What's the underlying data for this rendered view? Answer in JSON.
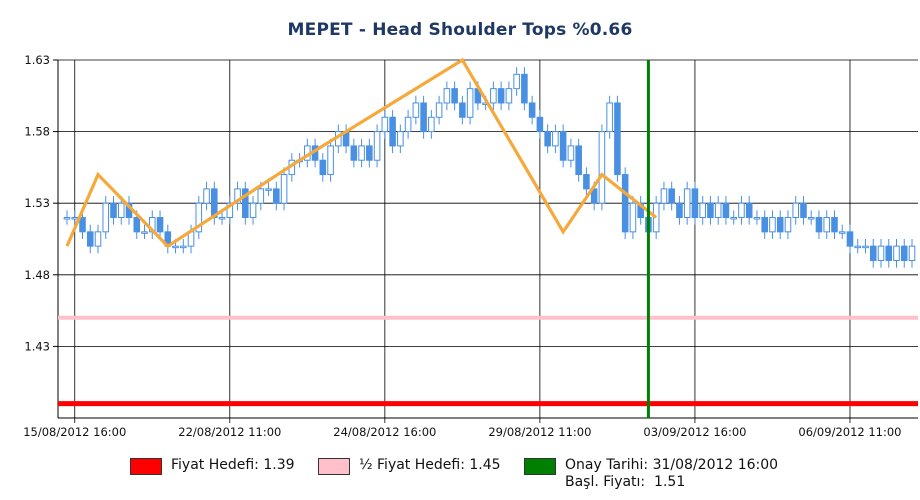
{
  "title": "MEPET - Head Shoulder Tops %0.66",
  "colors": {
    "candle": "#4a90e2",
    "pattern": "#f5a93b",
    "target": "#ff0000",
    "half_target": "#ffc0cb",
    "confirm": "#008000",
    "grid": "#000000"
  },
  "chart_data": {
    "type": "candlestick",
    "title": "MEPET - Head Shoulder Tops %0.66",
    "ylim": [
      1.38,
      1.63
    ],
    "yticks": [
      "1.63",
      "1.58",
      "1.53",
      "1.48",
      "1.43"
    ],
    "xticks": [
      "15/08/2012 16:00",
      "22/08/2012 11:00",
      "24/08/2012 16:00",
      "29/08/2012 11:00",
      "03/09/2012 16:00",
      "06/09/2012 11:00"
    ],
    "bar_count": 110,
    "xtick_indices": [
      1,
      21,
      41,
      61,
      81,
      101
    ],
    "price_closes": [
      1.52,
      1.52,
      1.51,
      1.5,
      1.51,
      1.53,
      1.52,
      1.53,
      1.52,
      1.51,
      1.51,
      1.52,
      1.51,
      1.5,
      1.5,
      1.5,
      1.51,
      1.53,
      1.54,
      1.52,
      1.52,
      1.53,
      1.54,
      1.52,
      1.53,
      1.54,
      1.54,
      1.53,
      1.55,
      1.56,
      1.56,
      1.57,
      1.56,
      1.55,
      1.57,
      1.58,
      1.57,
      1.56,
      1.57,
      1.56,
      1.58,
      1.59,
      1.57,
      1.58,
      1.59,
      1.6,
      1.58,
      1.59,
      1.6,
      1.61,
      1.6,
      1.59,
      1.61,
      1.6,
      1.6,
      1.61,
      1.6,
      1.61,
      1.62,
      1.6,
      1.59,
      1.58,
      1.57,
      1.58,
      1.56,
      1.57,
      1.55,
      1.54,
      1.53,
      1.58,
      1.6,
      1.55,
      1.51,
      1.53,
      1.52,
      1.51,
      1.53,
      1.54,
      1.53,
      1.52,
      1.54,
      1.52,
      1.53,
      1.52,
      1.53,
      1.52,
      1.52,
      1.53,
      1.52,
      1.52,
      1.51,
      1.52,
      1.51,
      1.52,
      1.53,
      1.52,
      1.52,
      1.51,
      1.52,
      1.51,
      1.51,
      1.5,
      1.5,
      1.5,
      1.49,
      1.5,
      1.49,
      1.5,
      1.49,
      1.5
    ],
    "pattern_line": {
      "x": [
        0,
        4,
        13,
        30,
        51,
        64,
        69,
        76
      ],
      "y": [
        1.5,
        1.55,
        1.5,
        1.56,
        1.63,
        1.51,
        1.55,
        1.52
      ]
    },
    "hlines": [
      {
        "name": "Fiyat Hedefi",
        "value": 1.39,
        "color": "#ff0000"
      },
      {
        "name": "½ Fiyat Hedefi",
        "value": 1.45,
        "color": "#ffc0cb"
      }
    ],
    "vline": {
      "name": "Onay Tarihi",
      "label": "31/08/2012 16:00",
      "bar_index": 75,
      "color": "#008000"
    },
    "legend": [
      {
        "color": "#ff0000",
        "lines": [
          "Fiyat Hedefi: 1.39"
        ]
      },
      {
        "color": "#ffc0cb",
        "lines": [
          "½ Fiyat Hedefi: 1.45"
        ]
      },
      {
        "color": "#008000",
        "lines": [
          "Onay Tarihi: 31/08/2012 16:00",
          "Başl. Fiyatı:  1.51"
        ]
      }
    ]
  }
}
